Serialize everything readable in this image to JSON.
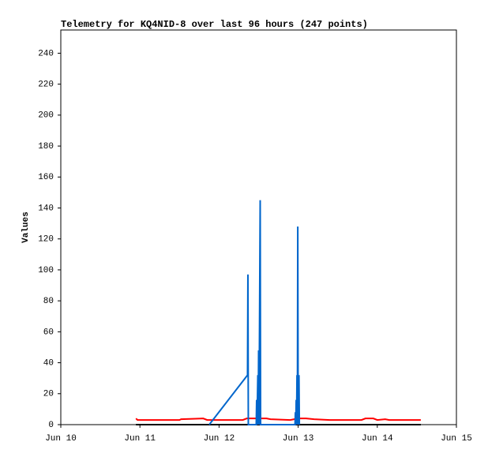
{
  "chart_data": {
    "type": "line",
    "title": "Telemetry for KQ4NID-8 over last 96 hours (247 points)",
    "y_label": "Values",
    "xlim": [
      10,
      15
    ],
    "xticks": [
      {
        "value": 10,
        "label": "Jun 10"
      },
      {
        "value": 11,
        "label": "Jun 11"
      },
      {
        "value": 12,
        "label": "Jun 12"
      },
      {
        "value": 13,
        "label": "Jun 13"
      },
      {
        "value": 14,
        "label": "Jun 14"
      },
      {
        "value": 15,
        "label": "Jun 15"
      }
    ],
    "ylim": [
      0,
      255
    ],
    "yticks": [
      0,
      20,
      40,
      60,
      80,
      100,
      120,
      140,
      160,
      180,
      200,
      220,
      240
    ],
    "series": [
      {
        "color": "#000000",
        "x": [
          10.95,
          14.55
        ],
        "values": [
          0,
          0
        ]
      },
      {
        "color": "#ff0000",
        "x": [
          10.95,
          10.97,
          11.5,
          11.52,
          11.8,
          11.85,
          12.3,
          12.35,
          12.6,
          12.65,
          12.9,
          13.0,
          13.1,
          13.2,
          13.4,
          13.8,
          13.85,
          13.95,
          14.0,
          14.1,
          14.15,
          14.55
        ],
        "values": [
          4,
          3,
          3,
          3.5,
          4,
          3,
          3,
          4,
          4,
          3.5,
          3,
          4,
          4,
          3.5,
          3,
          3,
          4,
          4,
          3,
          3.5,
          3,
          3
        ]
      },
      {
        "color": "#0066cc",
        "x": [
          11.876,
          12.36,
          12.365,
          12.37,
          12.47,
          12.475,
          12.48,
          12.49,
          12.495,
          12.5,
          12.505,
          12.52,
          12.525,
          12.96,
          12.965,
          12.97,
          12.975,
          12.98,
          12.985,
          12.99,
          12.995,
          13.0,
          13.01,
          13.015
        ],
        "values": [
          0,
          32,
          97,
          0,
          0,
          16,
          0,
          32,
          0,
          48,
          0,
          145,
          0,
          0,
          8,
          0,
          16,
          0,
          32,
          0,
          128,
          0,
          32,
          0
        ]
      }
    ]
  }
}
